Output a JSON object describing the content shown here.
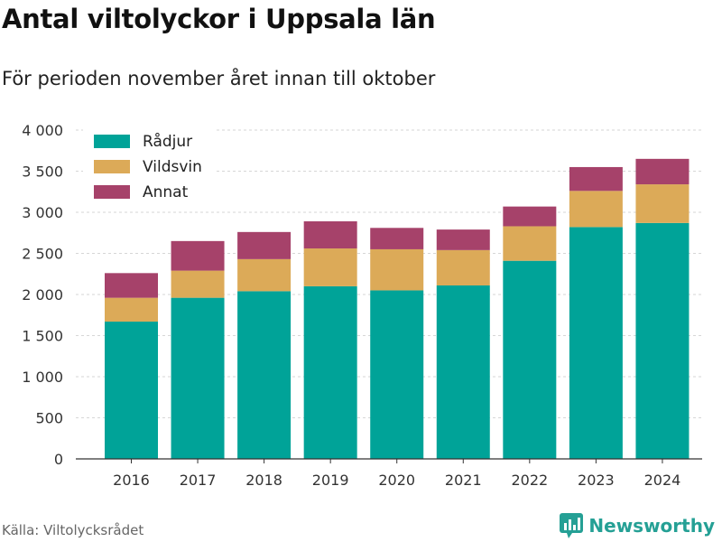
{
  "title": "Antal viltolyckor i Uppsala län",
  "subtitle": "För perioden november året innan till oktober",
  "source": "Källa: Viltolycksrådet",
  "brand": {
    "name": "Newsworthy",
    "icon": "newsworthy-logo-icon"
  },
  "colors": {
    "radjur": "#00a398",
    "vildsvin": "#dcaa58",
    "annat": "#a6426a",
    "brand": "#25a095"
  },
  "chart_data": {
    "type": "bar",
    "stacked": true,
    "categories": [
      "2016",
      "2017",
      "2018",
      "2019",
      "2020",
      "2021",
      "2022",
      "2023",
      "2024"
    ],
    "series": [
      {
        "name": "Rådjur",
        "values": [
          1670,
          1960,
          2040,
          2100,
          2050,
          2110,
          2410,
          2820,
          2870
        ]
      },
      {
        "name": "Vildsvin",
        "values": [
          290,
          330,
          390,
          460,
          500,
          430,
          420,
          440,
          470
        ]
      },
      {
        "name": "Annat",
        "values": [
          300,
          360,
          330,
          330,
          260,
          250,
          240,
          290,
          310
        ]
      }
    ],
    "ylim": [
      0,
      4000
    ],
    "yticks": [
      0,
      500,
      1000,
      1500,
      2000,
      2500,
      3000,
      3500,
      4000
    ],
    "ytick_labels": [
      "0",
      "500",
      "1 000",
      "1 500",
      "2 000",
      "2 500",
      "3 000",
      "3 500",
      "4 000"
    ],
    "grid": true,
    "legend": "top-left",
    "xlabel": "",
    "ylabel": ""
  }
}
